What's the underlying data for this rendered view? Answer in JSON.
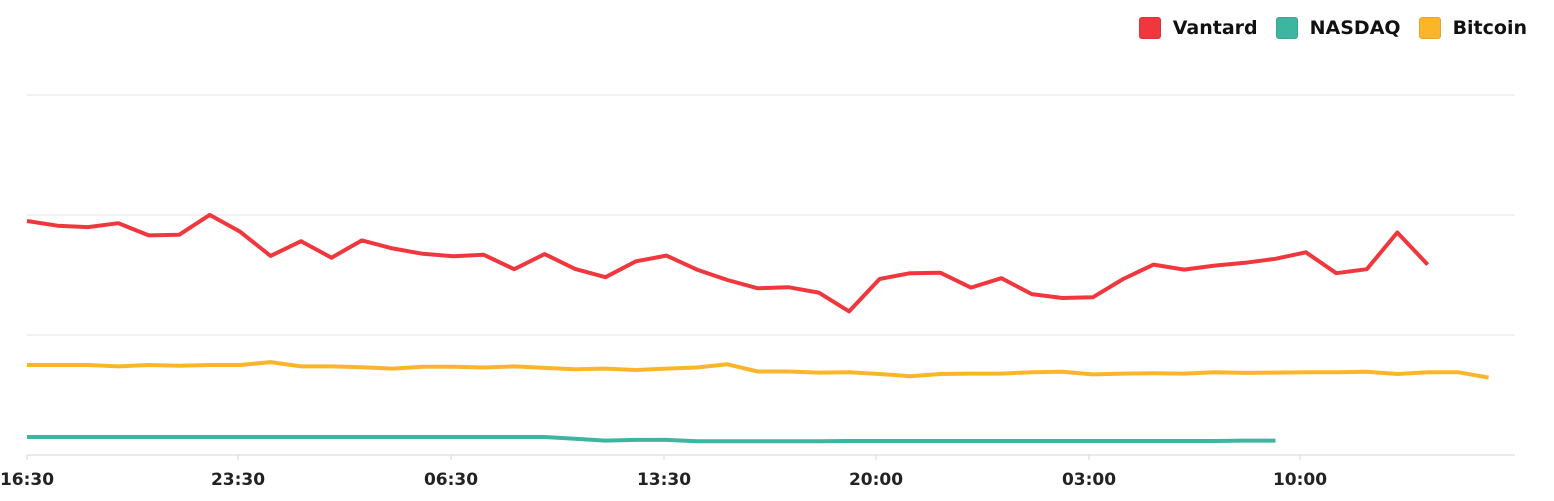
{
  "colors": {
    "vantard": "#f0373d",
    "nasdaq": "#3db5a0",
    "bitcoin": "#fbb52b",
    "grid": "#e3e3e3",
    "axis": "#d6d6d6"
  },
  "chart_data": {
    "type": "line",
    "grid": true,
    "legend_position": "top-right",
    "x_tick_labels": [
      "16:30",
      "23:30",
      "06:30",
      "13:30",
      "20:00",
      "03:00",
      "10:00"
    ],
    "series": [
      {
        "name": "Vantard",
        "color": "#f0373d",
        "y": [
          65.0,
          63.7,
          63.3,
          64.4,
          61.0,
          61.2,
          66.7,
          62.0,
          55.3,
          59.4,
          54.8,
          59.6,
          57.4,
          55.9,
          55.2,
          55.6,
          51.6,
          55.8,
          51.7,
          49.4,
          53.8,
          55.4,
          51.5,
          48.6,
          46.3,
          46.6,
          45.1,
          39.9,
          48.9,
          50.5,
          50.6,
          46.5,
          49.1,
          44.7,
          43.6,
          43.8,
          48.9,
          52.9,
          51.5,
          52.6,
          53.4,
          54.5,
          56.3,
          50.5,
          51.6,
          61.8,
          52.9
        ]
      },
      {
        "name": "NASDAQ",
        "color": "#3db5a0",
        "y": [
          5.0,
          5.0,
          5.0,
          5.0,
          5.0,
          5.0,
          5.0,
          5.0,
          5.0,
          5.0,
          5.0,
          5.0,
          5.0,
          5.0,
          5.0,
          5.0,
          5.0,
          5.0,
          4.5,
          4.0,
          4.2,
          4.2,
          3.8,
          3.8,
          3.8,
          3.8,
          3.8,
          3.9,
          3.9,
          3.9,
          3.9,
          3.9,
          3.9,
          3.9,
          3.9,
          3.9,
          3.9,
          3.9,
          3.9,
          3.9,
          4.0,
          4.0
        ]
      },
      {
        "name": "Bitcoin",
        "color": "#fbb52b",
        "y": [
          25.0,
          25.0,
          25.0,
          24.6,
          25.0,
          24.8,
          25.0,
          25.0,
          25.8,
          24.6,
          24.6,
          24.4,
          24.0,
          24.5,
          24.5,
          24.3,
          24.6,
          24.2,
          23.8,
          24.0,
          23.6,
          24.0,
          24.3,
          25.2,
          23.2,
          23.2,
          22.9,
          23.0,
          22.5,
          21.9,
          22.5,
          22.6,
          22.6,
          23.0,
          23.1,
          22.4,
          22.6,
          22.7,
          22.6,
          23.0,
          22.8,
          22.9,
          23.0,
          23.0,
          23.1,
          22.5,
          23.0,
          23.0,
          21.5
        ]
      }
    ]
  }
}
